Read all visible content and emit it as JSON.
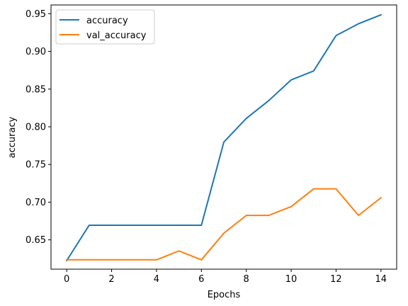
{
  "chart_data": {
    "type": "line",
    "xlabel": "Epochs",
    "ylabel": "accuracy",
    "xlim": [
      -0.7,
      14.7
    ],
    "ylim": [
      0.6111,
      0.9616
    ],
    "xticks": [
      0,
      2,
      4,
      6,
      8,
      10,
      12,
      14
    ],
    "xtick_labels": [
      "0",
      "2",
      "4",
      "6",
      "8",
      "10",
      "12",
      "14"
    ],
    "yticks": [
      0.65,
      0.7,
      0.75,
      0.8,
      0.85,
      0.9,
      0.95
    ],
    "ytick_labels": [
      "0.65",
      "0.70",
      "0.75",
      "0.80",
      "0.85",
      "0.90",
      "0.95"
    ],
    "grid": false,
    "legend_position": "top-left",
    "x": [
      0,
      1,
      2,
      3,
      4,
      5,
      6,
      7,
      8,
      9,
      10,
      11,
      12,
      13,
      14
    ],
    "series": [
      {
        "name": "accuracy",
        "color": "#1f77b4",
        "values": [
          0.6225,
          0.6694,
          0.6694,
          0.6694,
          0.6694,
          0.6694,
          0.6694,
          0.7797,
          0.8111,
          0.8347,
          0.8622,
          0.874,
          0.921,
          0.9367,
          0.9485
        ]
      },
      {
        "name": "val_accuracy",
        "color": "#ff7f0e",
        "values": [
          0.6235,
          0.6235,
          0.6235,
          0.6235,
          0.6235,
          0.6353,
          0.6235,
          0.6588,
          0.6824,
          0.6824,
          0.6941,
          0.7176,
          0.7176,
          0.6824,
          0.7059
        ]
      }
    ]
  }
}
